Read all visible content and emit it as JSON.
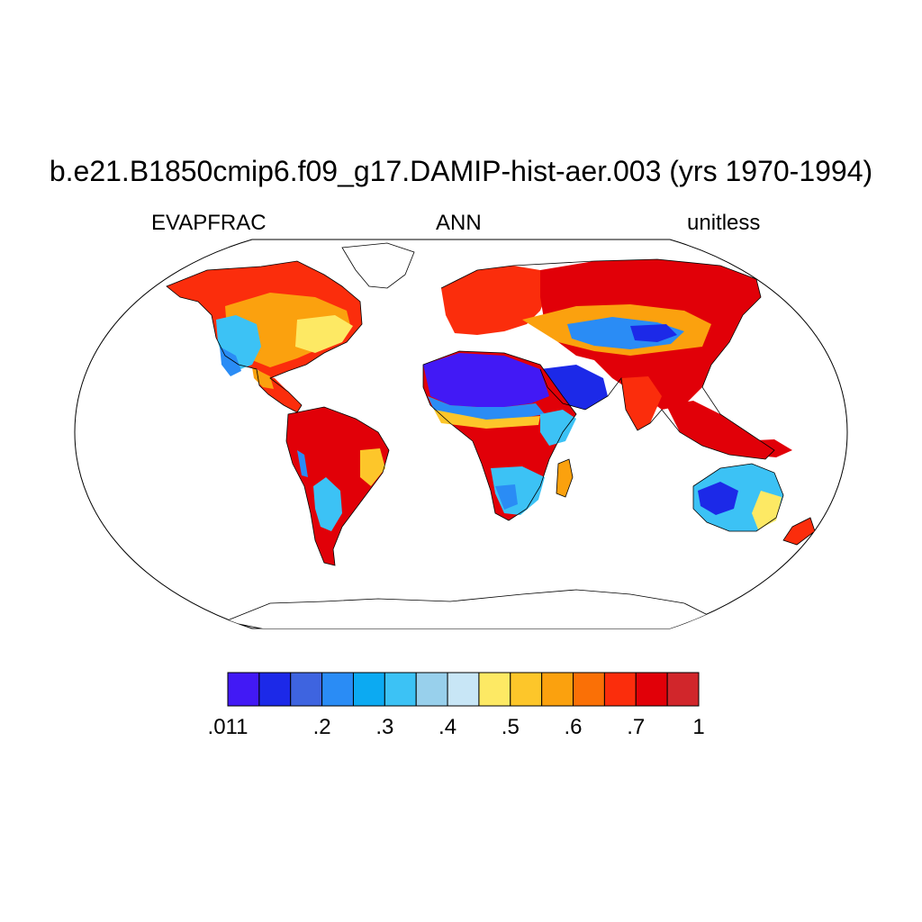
{
  "header": {
    "title": "b.e21.B1850cmip6.f09_g17.DAMIP-hist-aer.003 (yrs 1970-1994)",
    "left": "EVAPFRAC",
    "center": "ANN",
    "right": "unitless"
  },
  "map": {
    "projection": "Robinson",
    "variable": "EVAPFRAC",
    "season": "ANN"
  },
  "colorbar": {
    "colors": [
      "#4219f5",
      "#1c29e8",
      "#3e64e0",
      "#2a8cf5",
      "#0caaf2",
      "#3cc2f5",
      "#98d0ec",
      "#c8e6f6",
      "#fde964",
      "#fdc62a",
      "#fba10e",
      "#fa7006",
      "#fb2d0c",
      "#e10008",
      "#d1262b"
    ],
    "tick_labels": [
      ".011",
      ".2",
      ".3",
      ".4",
      ".5",
      ".6",
      ".7",
      "1"
    ]
  },
  "palette": {
    "land_outline": "#000000",
    "frame": "#000000",
    "ocean": "#ffffff"
  }
}
